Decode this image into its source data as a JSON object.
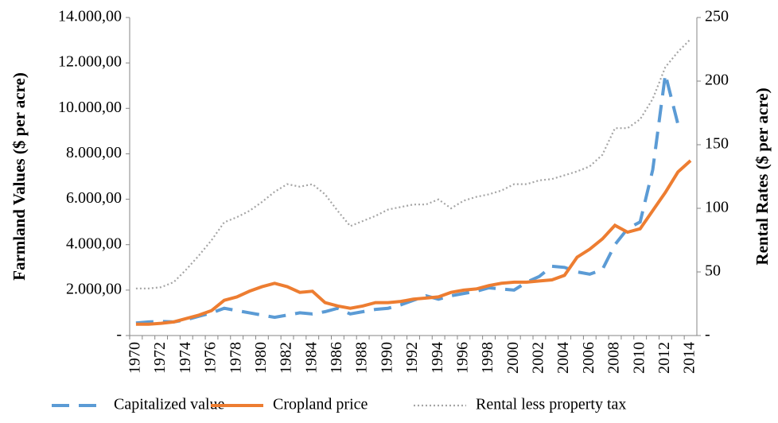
{
  "chart_data": {
    "type": "line",
    "categories": [
      "1970",
      null,
      "1972",
      null,
      "1974",
      null,
      "1976",
      null,
      "1978",
      null,
      "1980",
      null,
      "1982",
      null,
      "1984",
      null,
      "1986",
      null,
      "1988",
      null,
      "1990",
      null,
      "1992",
      null,
      "1994",
      null,
      "1996",
      null,
      "1998",
      null,
      "2000",
      null,
      "2002",
      null,
      "2004",
      null,
      "2006",
      null,
      "2008",
      null,
      "2010",
      null,
      "2012",
      null,
      "2014"
    ],
    "ylabel": "Farmland Values ($ per acre)",
    "y2label": "Rental Rates ($ per acre)",
    "ylim": [
      0,
      14000
    ],
    "yticks": [
      {
        "value": 0,
        "label": "-"
      },
      {
        "value": 2000,
        "label": "2.000,00"
      },
      {
        "value": 4000,
        "label": "4.000,00"
      },
      {
        "value": 6000,
        "label": "6.000,00"
      },
      {
        "value": 8000,
        "label": "8.000,00"
      },
      {
        "value": 10000,
        "label": "10.000,00"
      },
      {
        "value": 12000,
        "label": "12.000,00"
      },
      {
        "value": 14000,
        "label": "14.000,00"
      }
    ],
    "y2lim": [
      0,
      250
    ],
    "y2ticks": [
      {
        "value": 0,
        "label": "-"
      },
      50,
      100,
      150,
      200,
      250
    ],
    "grid": false,
    "legend": "bottom",
    "series": [
      {
        "name": "Capitalized value",
        "color": "#5b9bd5",
        "dash": "dashed",
        "values": [
          550,
          600,
          620,
          600,
          700,
          850,
          1000,
          1200,
          1100,
          1000,
          900,
          800,
          900,
          1000,
          950,
          1050,
          1200,
          950,
          1050,
          1150,
          1200,
          1350,
          1550,
          1750,
          1600,
          1750,
          1850,
          1950,
          2100,
          2050,
          2000,
          2350,
          2600,
          3050,
          3000,
          2800,
          2700,
          2900,
          4000,
          4700,
          5000,
          7300,
          11500,
          9300,
          null
        ]
      },
      {
        "name": "Cropland price",
        "color": "#ed7d31",
        "dash": "solid",
        "values": [
          500,
          500,
          540,
          600,
          750,
          900,
          1100,
          1550,
          1700,
          1950,
          2150,
          2300,
          2150,
          1900,
          1950,
          1450,
          1300,
          1200,
          1300,
          1450,
          1450,
          1500,
          1600,
          1650,
          1700,
          1900,
          2000,
          2050,
          2200,
          2300,
          2350,
          2350,
          2400,
          2450,
          2650,
          3450,
          3800,
          4250,
          4850,
          4550,
          4700,
          5500,
          6300,
          7200,
          7700
        ]
      },
      {
        "name": "Rental less property tax",
        "color": "#a5a5a5",
        "dash": "dotted",
        "axis": "y2",
        "values": [
          37,
          37,
          38,
          42,
          52,
          63,
          75,
          89,
          93,
          98,
          105,
          113,
          119,
          117,
          119,
          111,
          98,
          86,
          90,
          94,
          99,
          101,
          103,
          103,
          107,
          100,
          106,
          109,
          111,
          114,
          119,
          119,
          122,
          123,
          126,
          129,
          133,
          142,
          163,
          163,
          170,
          186,
          211,
          223,
          233
        ]
      }
    ]
  }
}
